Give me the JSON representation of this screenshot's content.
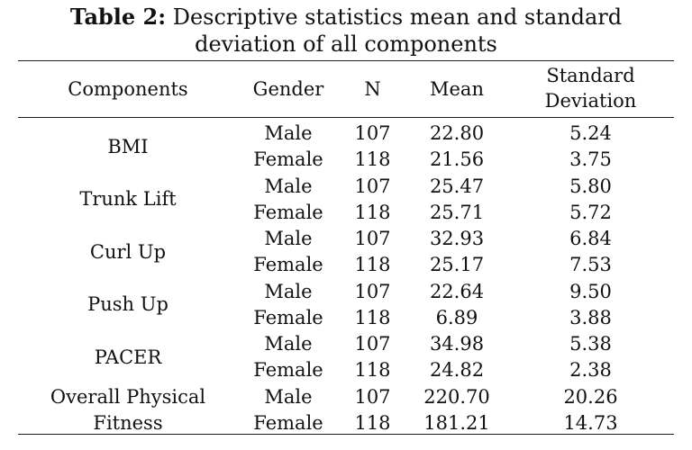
{
  "caption": {
    "label": "Table 2:",
    "text_line1": " Descriptive statistics mean and standard",
    "text_line2": "deviation of all components"
  },
  "headers": {
    "components": "Components",
    "gender": "Gender",
    "n": "N",
    "mean": "Mean",
    "sd_line1": "Standard",
    "sd_line2": "Deviation"
  },
  "groups": [
    {
      "component_line1": "BMI",
      "component_line2": "",
      "rows": [
        {
          "gender": "Male",
          "n": "107",
          "mean": "22.80",
          "sd": "5.24"
        },
        {
          "gender": "Female",
          "n": "118",
          "mean": "21.56",
          "sd": "3.75"
        }
      ]
    },
    {
      "component_line1": "Trunk Lift",
      "component_line2": "",
      "rows": [
        {
          "gender": "Male",
          "n": "107",
          "mean": "25.47",
          "sd": "5.80"
        },
        {
          "gender": "Female",
          "n": "118",
          "mean": "25.71",
          "sd": "5.72"
        }
      ]
    },
    {
      "component_line1": "Curl Up",
      "component_line2": "",
      "rows": [
        {
          "gender": "Male",
          "n": "107",
          "mean": "32.93",
          "sd": "6.84"
        },
        {
          "gender": "Female",
          "n": "118",
          "mean": "25.17",
          "sd": "7.53"
        }
      ]
    },
    {
      "component_line1": "Push Up",
      "component_line2": "",
      "rows": [
        {
          "gender": "Male",
          "n": "107",
          "mean": "22.64",
          "sd": "9.50"
        },
        {
          "gender": "Female",
          "n": "118",
          "mean": "6.89",
          "sd": "3.88"
        }
      ]
    },
    {
      "component_line1": "PACER",
      "component_line2": "",
      "rows": [
        {
          "gender": "Male",
          "n": "107",
          "mean": "34.98",
          "sd": "5.38"
        },
        {
          "gender": "Female",
          "n": "118",
          "mean": "24.82",
          "sd": "2.38"
        }
      ]
    },
    {
      "component_line1": "Overall Physical",
      "component_line2": "Fitness",
      "rows": [
        {
          "gender": "Male",
          "n": "107",
          "mean": "220.70",
          "sd": "20.26"
        },
        {
          "gender": "Female",
          "n": "118",
          "mean": "181.21",
          "sd": "14.73"
        }
      ]
    }
  ]
}
